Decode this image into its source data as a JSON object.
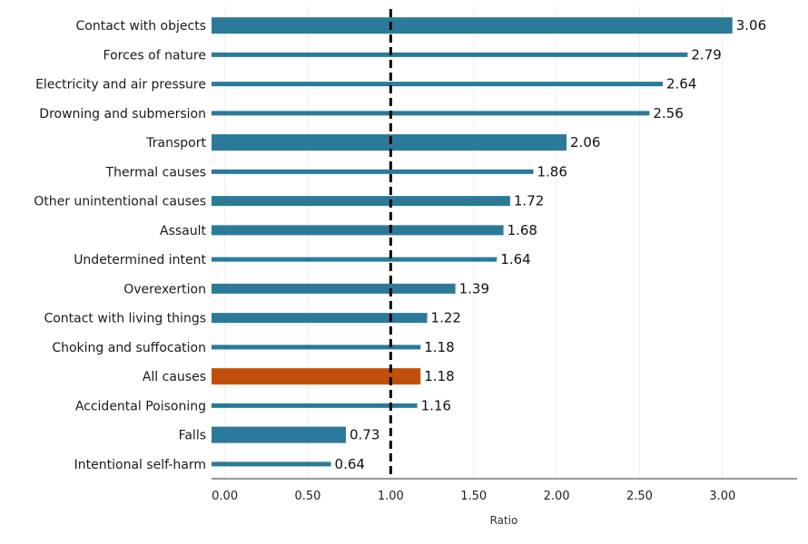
{
  "chart_data": {
    "type": "bar",
    "orientation": "horizontal",
    "categories": [
      "Contact with objects",
      "Forces of nature",
      "Electricity and air pressure",
      "Drowning and submersion",
      "Transport",
      "Thermal causes",
      "Other unintentional causes",
      "Assault",
      "Undetermined intent",
      "Overexertion",
      "Contact with living things",
      "Choking and suffocation",
      "All causes",
      "Accidental Poisoning",
      "Falls",
      "Intentional self-harm"
    ],
    "values": [
      3.06,
      2.79,
      2.64,
      2.56,
      2.06,
      1.86,
      1.72,
      1.68,
      1.64,
      1.39,
      1.22,
      1.18,
      1.18,
      1.16,
      0.73,
      0.64
    ],
    "data_labels": [
      "3.06",
      "2.79",
      "2.64",
      "2.56",
      "2.06",
      "1.86",
      "1.72",
      "1.68",
      "1.64",
      "1.39",
      "1.22",
      "1.18",
      "1.18",
      "1.16",
      "0.73",
      "0.64"
    ],
    "bar_emphasis": [
      "thick",
      "thin",
      "thin",
      "thin",
      "thick",
      "thin",
      "medium",
      "medium",
      "thin",
      "medium",
      "medium",
      "thin",
      "thick",
      "thin",
      "thick",
      "thin"
    ],
    "xlabel": "Ratio",
    "xlim": [
      -0.08,
      3.45
    ],
    "xticks": [
      0,
      0.5,
      1,
      1.5,
      2,
      2.5,
      3
    ],
    "xtick_labels": [
      "0.00",
      "0.50",
      "1.00",
      "1.50",
      "2.00",
      "2.50",
      "3.00"
    ],
    "reference_line": {
      "x": 1.0,
      "style": "dashed"
    },
    "grid": "vertical-light",
    "colors": {
      "default": "#2b7a99",
      "highlight": "#c24e0c",
      "reference_line": "#000000"
    },
    "highlight_category": "All causes"
  }
}
